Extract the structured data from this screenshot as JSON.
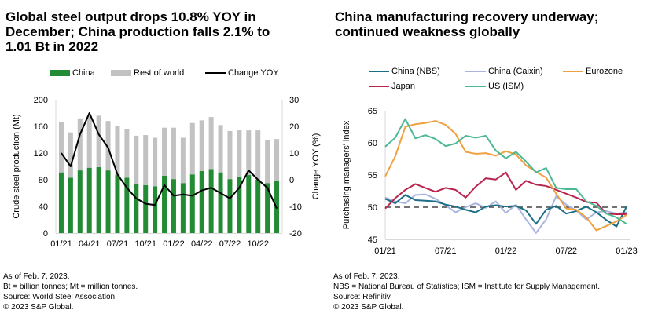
{
  "chart_data": [
    {
      "type": "bar",
      "stacked": true,
      "title": "Global steel output drops 10.8% YOY in December; China production falls 2.1% to 1.01 Bt in 2022",
      "xlabel": "",
      "ylabel": "Crude steel production (Mt)",
      "y2label": "Change YOY (%)",
      "ylim": [
        0,
        200
      ],
      "y2lim": [
        -20,
        30
      ],
      "yticks": [
        "0",
        "40",
        "80",
        "120",
        "160",
        "200"
      ],
      "y2ticks": [
        "-20",
        "-10",
        "0",
        "10",
        "20",
        "30"
      ],
      "xtick_labels": [
        "01/21",
        "04/21",
        "07/21",
        "10/21",
        "01/22",
        "04/22",
        "07/22",
        "10/22"
      ],
      "categories": [
        "01/21",
        "02/21",
        "03/21",
        "04/21",
        "05/21",
        "06/21",
        "07/21",
        "08/21",
        "09/21",
        "10/21",
        "11/21",
        "12/21",
        "01/22",
        "02/22",
        "03/22",
        "04/22",
        "05/22",
        "06/22",
        "07/22",
        "08/22",
        "09/22",
        "10/22",
        "11/22",
        "12/22"
      ],
      "legend_position": "top",
      "series": [
        {
          "name": "China",
          "kind": "bar",
          "color": "#228B34",
          "values": [
            91,
            83,
            94,
            98,
            99,
            94,
            87,
            83,
            74,
            72,
            70,
            86,
            81,
            75,
            88,
            93,
            96,
            91,
            81,
            84,
            87,
            80,
            75,
            78
          ]
        },
        {
          "name": "Rest of world",
          "kind": "bar",
          "color": "#C2C2C2",
          "values": [
            75,
            68,
            78,
            78,
            77,
            74,
            73,
            73,
            72,
            75,
            73,
            72,
            77,
            68,
            77,
            76,
            78,
            71,
            72,
            70,
            67,
            74,
            65,
            63
          ]
        },
        {
          "name": "Change YOY",
          "kind": "line",
          "axis": "right",
          "color": "#000000",
          "values": [
            10,
            5,
            17,
            25,
            17,
            12,
            2,
            -3,
            -7,
            -9,
            -9.5,
            -2,
            -6,
            -5.5,
            -6,
            -4,
            -3,
            -5,
            -7,
            -3,
            3.5,
            0,
            -3,
            -10.8
          ]
        }
      ]
    },
    {
      "type": "line",
      "title": "China manufacturing recovery underway; continued weakness globally",
      "xlabel": "",
      "ylabel": "Purchasing managers' index",
      "ylim": [
        45,
        65
      ],
      "yticks": [
        "45",
        "50",
        "55",
        "60",
        "65"
      ],
      "xtick_labels": [
        "01/21",
        "07/21",
        "01/22",
        "07/22",
        "01/23"
      ],
      "x": [
        "01/21",
        "02/21",
        "03/21",
        "04/21",
        "05/21",
        "06/21",
        "07/21",
        "08/21",
        "09/21",
        "10/21",
        "11/21",
        "12/21",
        "01/22",
        "02/22",
        "03/22",
        "04/22",
        "05/22",
        "06/22",
        "07/22",
        "08/22",
        "09/22",
        "10/22",
        "11/22",
        "12/22",
        "01/23"
      ],
      "reference_line": {
        "value": 50,
        "style": "dashed",
        "color": "#444444"
      },
      "legend_position": "top",
      "series": [
        {
          "name": "China (NBS)",
          "color": "#1A6E86",
          "values": [
            51.3,
            50.6,
            51.9,
            51.1,
            51.0,
            50.9,
            50.4,
            50.1,
            49.6,
            49.2,
            50.1,
            50.3,
            50.1,
            50.2,
            49.5,
            47.4,
            49.6,
            50.2,
            49.0,
            49.4,
            50.1,
            49.2,
            48.0,
            47.0,
            50.1
          ]
        },
        {
          "name": "China (Caixin)",
          "color": "#A9B4E0",
          "values": [
            51.5,
            50.9,
            50.6,
            51.9,
            52.0,
            51.3,
            50.3,
            49.2,
            50.0,
            50.6,
            49.9,
            50.9,
            49.1,
            50.4,
            48.1,
            46.0,
            48.1,
            51.7,
            50.4,
            49.5,
            48.1,
            49.2,
            49.4,
            49.0,
            49.2
          ]
        },
        {
          "name": "Eurozone",
          "color": "#F0A040",
          "values": [
            54.8,
            57.9,
            62.5,
            62.9,
            63.1,
            63.4,
            62.8,
            61.4,
            58.6,
            58.3,
            58.4,
            58.0,
            58.7,
            58.2,
            56.5,
            55.5,
            54.6,
            52.1,
            49.8,
            49.6,
            48.4,
            46.4,
            47.1,
            47.8,
            48.8
          ]
        },
        {
          "name": "Japan",
          "color": "#B8254E",
          "values": [
            49.8,
            51.4,
            52.7,
            53.6,
            53.0,
            52.4,
            53.0,
            52.7,
            51.5,
            53.2,
            54.5,
            54.3,
            55.4,
            52.7,
            54.1,
            53.5,
            53.3,
            52.7,
            52.1,
            51.5,
            50.8,
            50.7,
            49.0,
            48.9,
            48.9
          ]
        },
        {
          "name": "US (ISM)",
          "color": "#4DB894",
          "values": [
            59.4,
            60.8,
            63.7,
            60.7,
            61.2,
            60.6,
            59.5,
            59.9,
            61.1,
            60.8,
            61.1,
            58.8,
            57.6,
            58.6,
            57.1,
            55.4,
            56.1,
            53.0,
            52.8,
            52.8,
            50.9,
            50.2,
            49.0,
            48.4,
            47.4
          ]
        }
      ]
    }
  ],
  "left": {
    "title_lines": [
      "Global steel output drops 10.8% YOY in",
      "December; China production falls 2.1% to",
      "1.01 Bt in 2022"
    ],
    "legend": {
      "china": "China",
      "rest": "Rest of world",
      "change": "Change YOY"
    },
    "notes": [
      "As of Feb. 7, 2023.",
      "Bt = billion tonnes; Mt  = million tonnes.",
      "Source: World Steel Association.",
      "© 2023 S&P Global."
    ]
  },
  "right": {
    "title_lines": [
      "China manufacturing recovery underway;",
      "continued weakness globally"
    ],
    "legend": {
      "nbs": "China (NBS)",
      "caixin": "China (Caixin)",
      "eurozone": "Eurozone",
      "japan": "Japan",
      "us": "US (ISM)"
    },
    "notes": [
      "As of Feb. 7, 2023.",
      "NBS = National Bureau of Statistics; ISM = Institute for Supply Management.",
      "Source: Refinitiv.",
      "© 2023 S&P Global."
    ]
  }
}
